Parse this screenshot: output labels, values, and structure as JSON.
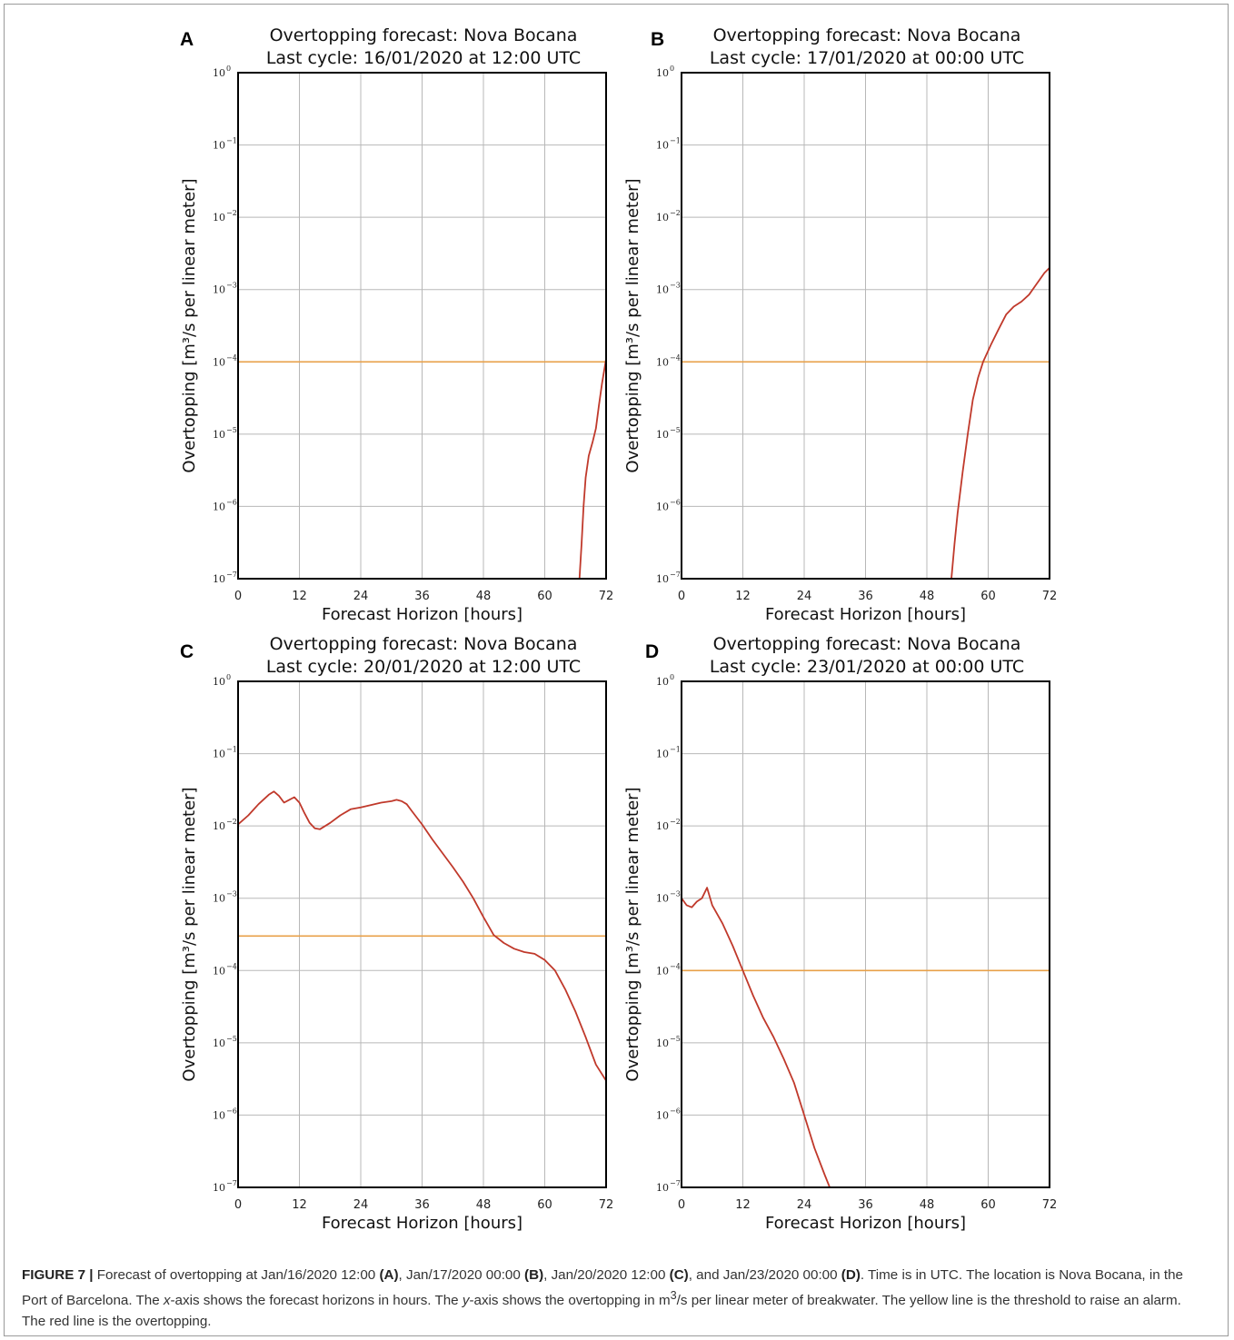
{
  "figure": {
    "caption": {
      "label": "FIGURE 7 |",
      "t1": " Forecast of overtopping at Jan/16/2020 12:00 ",
      "r1": "(A)",
      "t2": ", Jan/17/2020 00:00 ",
      "r2": "(B)",
      "t3": ", Jan/20/2020 12:00 ",
      "r3": "(C)",
      "t4": ", and Jan/23/2020 00:00 ",
      "r4": "(D)",
      "t5": ". Time is in UTC. The location is Nova Bocana, in the Port of Barcelona. The ",
      "x_var": "x",
      "t6": "-axis shows the forecast horizons in hours. The ",
      "y_var": "y",
      "t7": "-axis shows the overtopping in m",
      "sup": "3",
      "t8": "/s per linear meter of breakwater. The yellow line is the threshold to raise an alarm. The red line is the overtopping."
    }
  },
  "colors": {
    "overtopping": "#c0392b",
    "threshold": "#e8a048"
  },
  "chart_data": [
    {
      "type": "line",
      "panel": "A",
      "title": "Overtopping forecast: Nova Bocana",
      "subtitle": "Last cycle: 16/01/2020 at 12:00 UTC",
      "xlabel": "Forecast Horizon [hours]",
      "ylabel": "Overtopping [m³/s per linear meter]",
      "xlim": [
        0,
        72
      ],
      "xticks": [
        "0",
        "12",
        "24",
        "36",
        "48",
        "60",
        "72"
      ],
      "ylim": [
        1e-07,
        1
      ],
      "yscale": "log",
      "yticks_exp": [
        "0",
        "-1",
        "-2",
        "-3",
        "-4",
        "-5",
        "-6",
        "-7"
      ],
      "grid": true,
      "threshold": 0.0001,
      "series": [
        {
          "x": [
            66.8,
            67.2,
            67.6,
            68.0,
            68.6,
            69.4,
            70.0,
            70.6,
            71.2,
            72.0
          ],
          "y": [
            1e-07,
            3e-07,
            1e-06,
            2.5e-06,
            5e-06,
            8e-06,
            1.2e-05,
            2.5e-05,
            5e-05,
            0.00011
          ]
        }
      ]
    },
    {
      "type": "line",
      "panel": "B",
      "title": "Overtopping forecast: Nova Bocana",
      "subtitle": "Last cycle: 17/01/2020 at 00:00 UTC",
      "xlabel": "Forecast Horizon [hours]",
      "ylabel": "Overtopping [m³/s per linear meter]",
      "xlim": [
        0,
        72
      ],
      "xticks": [
        "0",
        "12",
        "24",
        "36",
        "48",
        "60",
        "72"
      ],
      "ylim": [
        1e-07,
        1
      ],
      "yscale": "log",
      "yticks_exp": [
        "0",
        "-1",
        "-2",
        "-3",
        "-4",
        "-5",
        "-6",
        "-7"
      ],
      "grid": true,
      "threshold": 0.0001,
      "series": [
        {
          "x": [
            52.8,
            53.4,
            54.0,
            55.0,
            56.0,
            57.0,
            58.0,
            59.0,
            60.5,
            62.0,
            63.5,
            65.0,
            66.5,
            68.0,
            69.5,
            71.0,
            72.0
          ],
          "y": [
            1e-07,
            3e-07,
            8e-07,
            3e-06,
            1e-05,
            3e-05,
            6e-05,
            0.0001,
            0.00017,
            0.00028,
            0.00045,
            0.00058,
            0.00068,
            0.00085,
            0.0012,
            0.0017,
            0.002
          ]
        }
      ]
    },
    {
      "type": "line",
      "panel": "C",
      "title": "Overtopping forecast: Nova Bocana",
      "subtitle": "Last cycle: 20/01/2020 at 12:00 UTC",
      "xlabel": "Forecast Horizon [hours]",
      "ylabel": "Overtopping [m³/s per linear meter]",
      "xlim": [
        0,
        72
      ],
      "xticks": [
        "0",
        "12",
        "24",
        "36",
        "48",
        "60",
        "72"
      ],
      "ylim": [
        1e-07,
        1
      ],
      "yscale": "log",
      "yticks_exp": [
        "0",
        "-1",
        "-2",
        "-3",
        "-4",
        "-5",
        "-6",
        "-7"
      ],
      "grid": true,
      "threshold": 0.0003,
      "series": [
        {
          "x": [
            0,
            2,
            4,
            6,
            7,
            8,
            9,
            10,
            11,
            12,
            13,
            14,
            15,
            16,
            18,
            20,
            22,
            24,
            26,
            28,
            30,
            31,
            32,
            33,
            34,
            36,
            38,
            40,
            42,
            44,
            46,
            48,
            50,
            52,
            54,
            56,
            58,
            60,
            62,
            64,
            66,
            68,
            70,
            72
          ],
          "y": [
            0.0105,
            0.014,
            0.02,
            0.027,
            0.03,
            0.026,
            0.021,
            0.023,
            0.025,
            0.021,
            0.015,
            0.011,
            0.0093,
            0.009,
            0.011,
            0.014,
            0.017,
            0.018,
            0.0195,
            0.021,
            0.022,
            0.023,
            0.022,
            0.02,
            0.016,
            0.0105,
            0.0065,
            0.0042,
            0.0027,
            0.0017,
            0.001,
            0.00055,
            0.00031,
            0.00024,
            0.0002,
            0.00018,
            0.00017,
            0.00014,
            0.0001,
            5.5e-05,
            2.7e-05,
            1.2e-05,
            5e-06,
            3e-06
          ]
        }
      ]
    },
    {
      "type": "line",
      "panel": "D",
      "title": "Overtopping forecast: Nova Bocana",
      "subtitle": "Last cycle: 23/01/2020 at 00:00 UTC",
      "xlabel": "Forecast Horizon [hours]",
      "ylabel": "Overtopping [m³/s per linear meter]",
      "xlim": [
        0,
        72
      ],
      "xticks": [
        "0",
        "12",
        "24",
        "36",
        "48",
        "60",
        "72"
      ],
      "ylim": [
        1e-07,
        1
      ],
      "yscale": "log",
      "yticks_exp": [
        "0",
        "-1",
        "-2",
        "-3",
        "-4",
        "-5",
        "-6",
        "-7"
      ],
      "grid": true,
      "threshold": 0.0001,
      "series": [
        {
          "x": [
            0,
            1,
            2,
            3,
            4,
            5,
            6,
            8,
            10,
            12,
            14,
            16,
            18,
            20,
            22,
            24,
            26,
            28,
            29
          ],
          "y": [
            0.001,
            0.0008,
            0.00075,
            0.0009,
            0.001,
            0.0014,
            0.0008,
            0.00045,
            0.00022,
            0.0001,
            4.5e-05,
            2.2e-05,
            1.2e-05,
            6e-06,
            2.8e-06,
            1e-06,
            3.5e-07,
            1.5e-07,
            1e-07
          ]
        }
      ]
    }
  ]
}
